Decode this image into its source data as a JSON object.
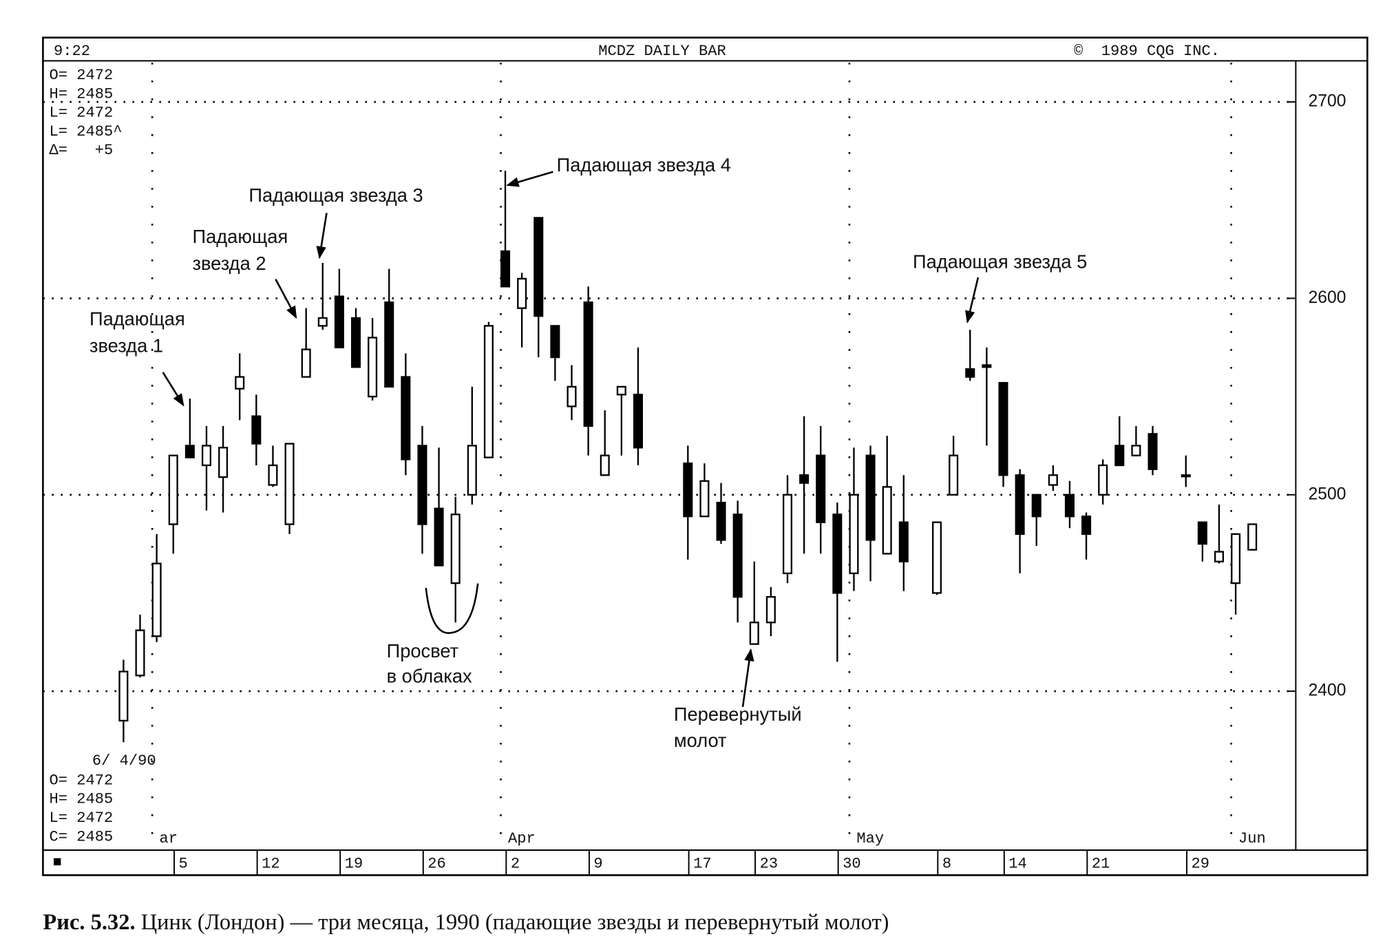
{
  "chart_data": {
    "type": "candlestick",
    "header": {
      "time": "9:22",
      "title": "MCDZ DAILY BAR",
      "copyright": "©  1989 CQG INC."
    },
    "info_top": [
      "O= 2472",
      "H= 2485",
      "L= 2472",
      "L= 2485^",
      "Δ=   +5"
    ],
    "info_bottom": [
      "6/ 4/90",
      "O= 2472",
      "H= 2485",
      "L= 2472",
      "C= 2485"
    ],
    "categories": [
      null,
      null,
      null,
      "5",
      null,
      null,
      null,
      null,
      "12",
      null,
      null,
      null,
      null,
      "19",
      null,
      null,
      null,
      null,
      "26",
      null,
      null,
      null,
      null,
      "2",
      null,
      null,
      null,
      null,
      "9",
      null,
      null,
      null,
      null,
      null,
      "17",
      null,
      null,
      null,
      "23",
      null,
      null,
      null,
      null,
      "30",
      null,
      null,
      null,
      null,
      null,
      "8",
      null,
      null,
      null,
      "14",
      null,
      null,
      null,
      null,
      "21",
      null,
      null,
      null,
      null,
      null,
      "29",
      null,
      null,
      null,
      null
    ],
    "months": [
      null,
      null,
      "ar",
      null,
      null,
      null,
      null,
      null,
      null,
      null,
      null,
      null,
      null,
      null,
      null,
      null,
      null,
      null,
      null,
      null,
      null,
      null,
      null,
      "Apr",
      null,
      null,
      null,
      null,
      null,
      null,
      null,
      null,
      null,
      null,
      null,
      null,
      null,
      null,
      null,
      null,
      null,
      null,
      null,
      null,
      "May",
      null,
      null,
      null,
      null,
      null,
      null,
      null,
      null,
      null,
      null,
      null,
      null,
      null,
      null,
      null,
      null,
      null,
      null,
      null,
      null,
      null,
      null,
      "Jun",
      null
    ],
    "open": [
      2385,
      2408,
      2428,
      2485,
      2525,
      2515,
      2509,
      2554,
      2540,
      2505,
      2485,
      2560,
      2586,
      2601,
      2590,
      2550,
      2598,
      2560,
      2525,
      2493,
      2455,
      2500,
      2519,
      2624,
      2595,
      2641,
      2586,
      2545,
      2598,
      2510,
      2551,
      2551,
      null,
      null,
      2516,
      2489,
      2496,
      2490,
      2424,
      2435,
      2460,
      2510,
      2520,
      2490,
      2460,
      2520,
      2470,
      2486,
      null,
      2450,
      2500,
      2564,
      2566,
      2557,
      2510,
      2500,
      2505,
      2500,
      2489,
      2500,
      2525,
      2520,
      2531,
      null,
      2510,
      2486,
      2466,
      2455,
      2472
    ],
    "high": [
      2416,
      2439,
      2480,
      2520,
      2549,
      2535,
      2535,
      2572,
      2551,
      2525,
      2526,
      2595,
      2618,
      2615,
      2595,
      2590,
      2615,
      2572,
      2535,
      2524,
      2499,
      2555,
      2588,
      2665,
      2613,
      2641,
      2586,
      2566,
      2606,
      2543,
      2555,
      2575,
      null,
      null,
      2525,
      2516,
      2506,
      2497,
      2466,
      2453,
      2510,
      2540,
      2535,
      2496,
      2524,
      2525,
      2530,
      2510,
      null,
      2486,
      2530,
      2584,
      2575,
      2557,
      2513,
      2500,
      2515,
      2507,
      2491,
      2518,
      2540,
      2535,
      2535,
      null,
      2520,
      2486,
      2495,
      2480,
      2485
    ],
    "low": [
      2374,
      2407,
      2425,
      2470,
      2519,
      2492,
      2491,
      2538,
      2515,
      2504,
      2480,
      2560,
      2584,
      2575,
      2565,
      2548,
      2555,
      2510,
      2470,
      2464,
      2435,
      2495,
      2519,
      2606,
      2575,
      2570,
      2558,
      2538,
      2520,
      2510,
      2520,
      2515,
      null,
      null,
      2467,
      2489,
      2475,
      2435,
      2424,
      2428,
      2455,
      2470,
      2470,
      2415,
      2451,
      2456,
      2470,
      2451,
      null,
      2449,
      2500,
      2558,
      2525,
      2504,
      2460,
      2474,
      2502,
      2483,
      2467,
      2495,
      2515,
      2520,
      2510,
      null,
      2504,
      2466,
      2465,
      2439,
      2472
    ],
    "close": [
      2410,
      2431,
      2465,
      2520,
      2519,
      2525,
      2524,
      2560,
      2526,
      2515,
      2526,
      2574,
      2590,
      2575,
      2565,
      2580,
      2555,
      2518,
      2485,
      2464,
      2490,
      2525,
      2586,
      2606,
      2610,
      2591,
      2570,
      2555,
      2535,
      2520,
      2555,
      2524,
      null,
      null,
      2489,
      2507,
      2477,
      2448,
      2435,
      2448,
      2500,
      2506,
      2486,
      2450,
      2500,
      2477,
      2504,
      2466,
      null,
      2486,
      2520,
      2560,
      2565,
      2510,
      2480,
      2489,
      2510,
      2489,
      2480,
      2515,
      2515,
      2525,
      2513,
      null,
      2510,
      2475,
      2471,
      2480,
      2485
    ],
    "up_color": "#ffffff",
    "down_color": "#000000",
    "ylim": [
      2320,
      2720
    ],
    "yticks": [
      2400,
      2500,
      2600,
      2700
    ],
    "grid": true,
    "annotations": {
      "star1": [
        "Падающая",
        "звезда 1"
      ],
      "star2": [
        "Падающая",
        "звезда 2"
      ],
      "star3": [
        "Падающая звезда 3"
      ],
      "star4": [
        "Падающая звезда 4"
      ],
      "star5": [
        "Падающая звезда 5"
      ],
      "piercing": [
        "Просвет",
        "в облаках"
      ],
      "hammer": [
        "Перевернутый",
        "молот"
      ]
    },
    "caption": {
      "label": "Рис. 5.32.",
      "text": " Цинк (Лондон) — три месяца, 1990 (падающие звезды и перевернутый молот)"
    }
  }
}
